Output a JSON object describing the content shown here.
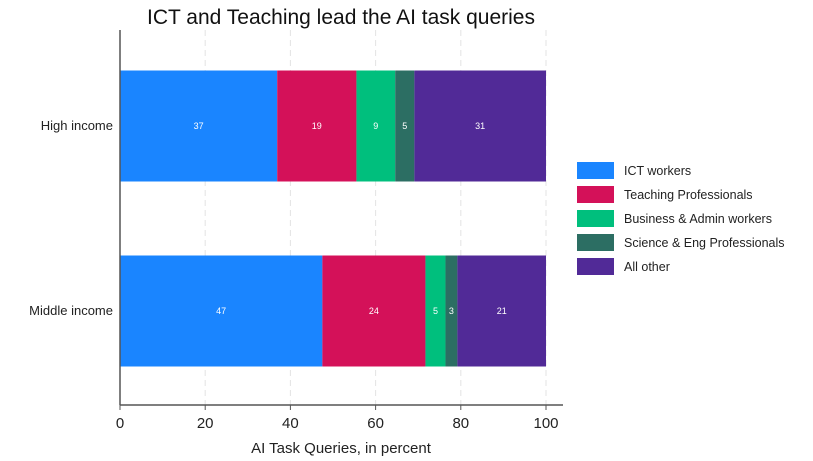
{
  "chart_data": {
    "type": "bar",
    "orientation": "horizontal",
    "stacked": true,
    "title": "ICT and Teaching lead the AI task queries",
    "xlabel": "AI Task Queries, in percent",
    "ylabel": "",
    "xlim": [
      0,
      100
    ],
    "xticks": [
      0,
      20,
      40,
      60,
      80,
      100
    ],
    "grid": "vertical dashed",
    "legend_position": "right",
    "categories": [
      "High income",
      "Middle income"
    ],
    "series": [
      {
        "name": "ICT workers",
        "color": "#1a85ff",
        "values": [
          36.9,
          47.5
        ],
        "labels": [
          "37",
          "47"
        ]
      },
      {
        "name": "Teaching Professionals",
        "color": "#d41159",
        "values": [
          18.6,
          24.2
        ],
        "labels": [
          "19",
          "24"
        ]
      },
      {
        "name": "Business & Admin workers",
        "color": "#00bf7d",
        "values": [
          9.1,
          4.7
        ],
        "labels": [
          "9",
          "5"
        ]
      },
      {
        "name": "Science & Eng Professionals",
        "color": "#2c6e63",
        "values": [
          4.5,
          2.8
        ],
        "labels": [
          "5",
          "3"
        ]
      },
      {
        "name": "All other",
        "color": "#512a97",
        "values": [
          30.9,
          20.8
        ],
        "labels": [
          "31",
          "21"
        ]
      }
    ]
  }
}
